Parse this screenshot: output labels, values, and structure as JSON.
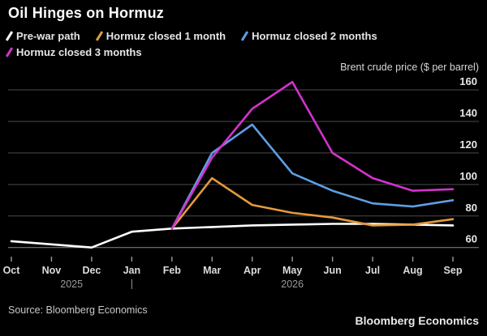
{
  "header": {
    "title": "Oil Hinges on Hormuz"
  },
  "axis": {
    "y_title": "Brent crude price ($ per barrel)"
  },
  "source": {
    "label": "Source: Bloomberg Economics"
  },
  "branding": {
    "label": "Bloomberg Economics"
  },
  "chart_data": {
    "type": "line",
    "title": "Oil Hinges on Hormuz",
    "ylabel": "Brent crude price ($ per barrel)",
    "xlabel": "",
    "categories": [
      "Oct",
      "Nov",
      "Dec",
      "Jan",
      "Feb",
      "Mar",
      "Apr",
      "May",
      "Jun",
      "Jul",
      "Aug",
      "Sep"
    ],
    "years": [
      {
        "label": "2025",
        "from_index": 0,
        "to_index": 3
      },
      {
        "label": "2026",
        "from_index": 3,
        "to_index": 11
      }
    ],
    "year_divider_index": 3,
    "yticks": [
      60,
      80,
      100,
      120,
      140,
      160
    ],
    "ylim": [
      57,
      168
    ],
    "grid": "horizontal",
    "legend_position": "top",
    "background_color": "#000000",
    "gridline_color": "#4a4a4a",
    "baseline_color": "#8a8a8a",
    "series": [
      {
        "name": "Pre-war path",
        "color": "#ffffff",
        "values": [
          64,
          62,
          60,
          70,
          72,
          73,
          74,
          74.5,
          75,
          75,
          74.5,
          74
        ]
      },
      {
        "name": "Hormuz closed 1 month",
        "color": "#e39b3b",
        "values": [
          null,
          null,
          null,
          null,
          72,
          104,
          87,
          82,
          79,
          74,
          74.5,
          78
        ]
      },
      {
        "name": "Hormuz closed 2 months",
        "color": "#5d9fe3",
        "values": [
          null,
          null,
          null,
          null,
          72,
          120,
          138,
          107,
          96,
          88,
          86,
          90
        ]
      },
      {
        "name": "Hormuz closed 3 months",
        "color": "#d233cc",
        "values": [
          null,
          null,
          null,
          null,
          72,
          117,
          148,
          165,
          120,
          104,
          96,
          97
        ]
      }
    ]
  }
}
